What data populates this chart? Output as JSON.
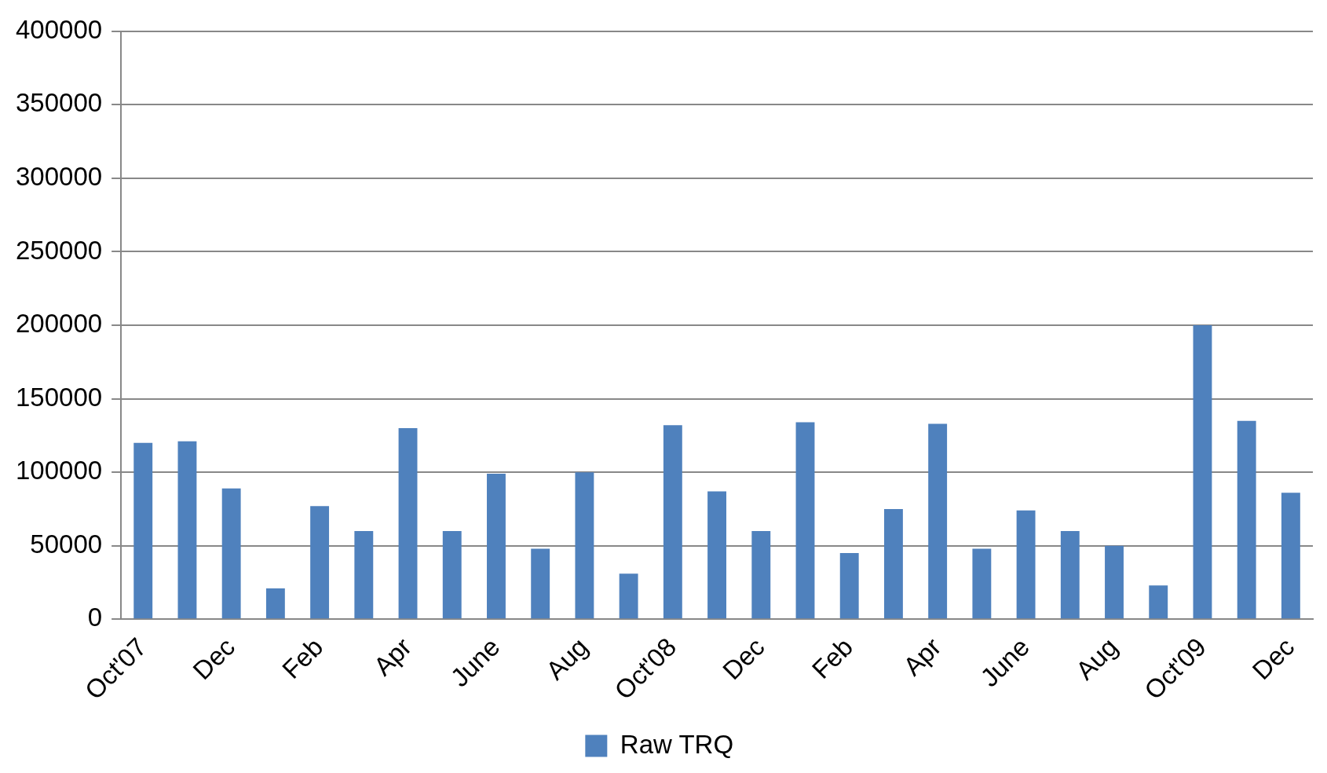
{
  "chart_data": {
    "type": "bar",
    "categories": [
      "Oct'07",
      null,
      "Dec",
      null,
      "Feb",
      null,
      "Apr",
      null,
      "June",
      null,
      "Aug",
      null,
      "Oct'08",
      null,
      "Dec",
      null,
      "Feb",
      null,
      "Apr",
      null,
      "June",
      null,
      "Aug",
      null,
      "Oct'09",
      null,
      "Dec"
    ],
    "series": [
      {
        "name": "Raw TRQ",
        "color": "#4f81bd",
        "values": [
          120000,
          121000,
          89000,
          21000,
          77000,
          60000,
          130000,
          60000,
          99000,
          48000,
          100000,
          31000,
          132000,
          87000,
          60000,
          134000,
          45000,
          75000,
          133000,
          48000,
          74000,
          60000,
          50000,
          23000,
          200000,
          135000,
          86000
        ]
      }
    ],
    "ylim": [
      0,
      400000
    ],
    "yticks": [
      0,
      50000,
      100000,
      150000,
      200000,
      250000,
      300000,
      350000,
      400000
    ],
    "grid": "y",
    "legend": "bottom"
  }
}
